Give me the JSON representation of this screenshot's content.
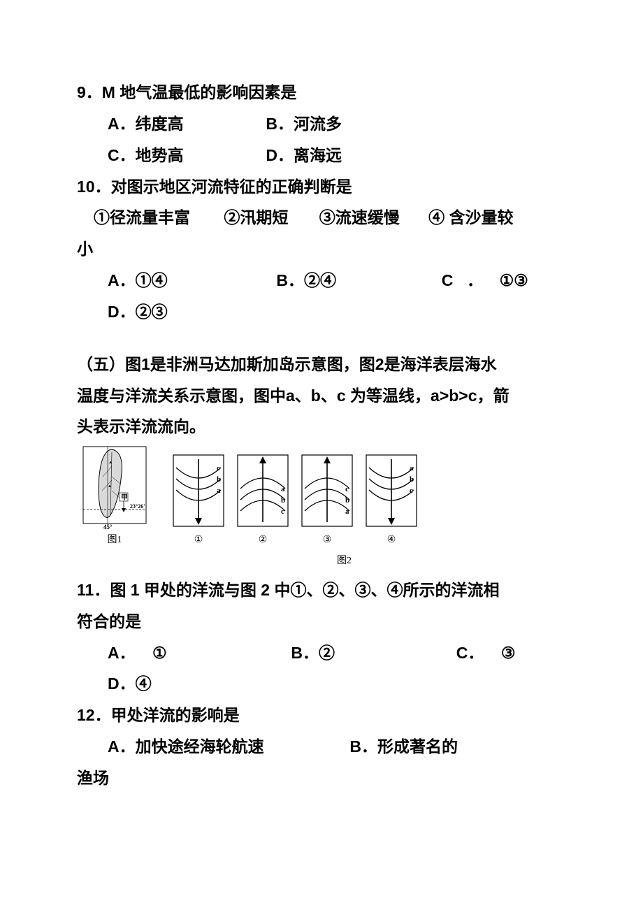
{
  "q9": {
    "stem": "9．M 地气温最低的影响因素是",
    "A": "A．纬度高",
    "B": "B．河流多",
    "C": "C．地势高",
    "D": "D．离海远"
  },
  "q10": {
    "stem": "10．对图示地区河流特征的正确判断是",
    "line2a": "①径流量丰富",
    "line2b": "②汛期短",
    "line2c": "③流速缓慢",
    "line2d": "④ 含沙量较",
    "line3": "小",
    "A": "A．①④",
    "B": "B．②④",
    "Ctext": "C",
    "Cdot": "．",
    "Cval": "①③",
    "D": "D．②③"
  },
  "section5": {
    "l1": "（五）图1是非洲马达加斯加岛示意图，图2是海洋表层海水",
    "l2": "温度与洋流关系示意图，图中a、b、c 为等温线，a>b>c，箭",
    "l3": "头表示洋流流向。"
  },
  "figures": {
    "map": {
      "lat_label": "23°26'",
      "lon_label": "45°",
      "place": "甲"
    },
    "fig1_label": "图1",
    "fig2_label": "图2",
    "panels": [
      {
        "id": "①",
        "dir": "down",
        "labels_top": true,
        "labels": [
          "c",
          "b",
          "a"
        ]
      },
      {
        "id": "②",
        "dir": "up",
        "labels_top": false,
        "labels": [
          "a",
          "b",
          "c"
        ]
      },
      {
        "id": "③",
        "dir": "up",
        "labels_top": false,
        "labels": [
          "c",
          "b",
          "a"
        ]
      },
      {
        "id": "④",
        "dir": "down",
        "labels_top": true,
        "labels": [
          "a",
          "b",
          "c"
        ]
      }
    ],
    "colors": {
      "stroke": "#000000",
      "fill": "#ffffff",
      "land": "#d9d9d9"
    }
  },
  "q11": {
    "l1": "11．图 1 甲处的洋流与图 2 中①、②、③、④所示的洋流相",
    "l2": "符合的是",
    "A": "A．",
    "Aval": "①",
    "B": "B．②",
    "C": "C．",
    "Cval": "③",
    "D": "D．④"
  },
  "q12": {
    "stem": "12．甲处洋流的影响是",
    "A": "A．加快途经海轮航速",
    "B": "B．形成著名的",
    "tail": "渔场"
  }
}
